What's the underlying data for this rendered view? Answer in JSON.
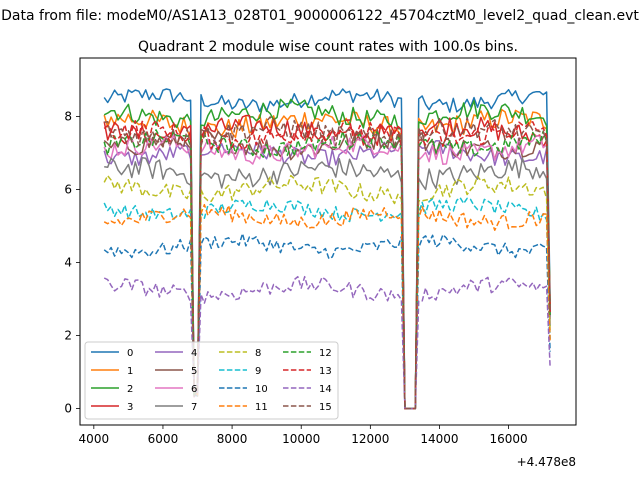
{
  "chart_data": {
    "type": "line",
    "suptitle": "Data from file: modeM0/AS1A13_028T01_9000006122_45704cztM0_level2_quad_clean.evt",
    "title": "Quadrant 2 module wise count rates with 100.0s bins.",
    "xlabel": "",
    "ylabel": "",
    "x_offset_label": "+4.478e8",
    "xlim": [
      3600,
      17950
    ],
    "ylim": [
      -0.45,
      9.6
    ],
    "xticks": [
      4000,
      6000,
      8000,
      10000,
      12000,
      14000,
      16000
    ],
    "yticks": [
      0,
      2,
      4,
      6,
      8
    ],
    "x_start": 4300,
    "x_end": 17200,
    "x_step": 100,
    "dips": [
      {
        "start": 6850,
        "end": 7000,
        "min": 0.3
      },
      {
        "start": 12950,
        "end": 13350,
        "min": 0.0
      }
    ],
    "legend_position": "lower-left",
    "legend_columns": 4,
    "grid": false,
    "series": [
      {
        "name": "0",
        "color": "#1f77b4",
        "dash": "solid",
        "level": 8.45,
        "noise": 0.22
      },
      {
        "name": "1",
        "color": "#ff7f0e",
        "dash": "solid",
        "level": 7.8,
        "noise": 0.3
      },
      {
        "name": "2",
        "color": "#2ca02c",
        "dash": "solid",
        "level": 8.05,
        "noise": 0.28
      },
      {
        "name": "3",
        "color": "#d62728",
        "dash": "solid",
        "level": 7.6,
        "noise": 0.3
      },
      {
        "name": "4",
        "color": "#9467bd",
        "dash": "solid",
        "level": 7.0,
        "noise": 0.25
      },
      {
        "name": "5",
        "color": "#8c564b",
        "dash": "solid",
        "level": 7.25,
        "noise": 0.3
      },
      {
        "name": "6",
        "color": "#e377c2",
        "dash": "solid",
        "level": 7.1,
        "noise": 0.28
      },
      {
        "name": "7",
        "color": "#7f7f7f",
        "dash": "solid",
        "level": 6.45,
        "noise": 0.3
      },
      {
        "name": "8",
        "color": "#bcbd22",
        "dash": "dashed",
        "level": 6.0,
        "noise": 0.25
      },
      {
        "name": "9",
        "color": "#17becf",
        "dash": "dashed",
        "level": 5.45,
        "noise": 0.2
      },
      {
        "name": "10",
        "color": "#1f77b4",
        "dash": "dashed",
        "level": 4.45,
        "noise": 0.2
      },
      {
        "name": "11",
        "color": "#ff7f0e",
        "dash": "dashed",
        "level": 5.25,
        "noise": 0.22
      },
      {
        "name": "12",
        "color": "#2ca02c",
        "dash": "dashed",
        "level": 7.25,
        "noise": 0.25
      },
      {
        "name": "13",
        "color": "#d62728",
        "dash": "dashed",
        "level": 7.5,
        "noise": 0.3
      },
      {
        "name": "14",
        "color": "#9467bd",
        "dash": "dashed",
        "level": 3.25,
        "noise": 0.22
      },
      {
        "name": "15",
        "color": "#8c564b",
        "dash": "dashed",
        "level": 7.55,
        "noise": 0.3
      }
    ]
  }
}
